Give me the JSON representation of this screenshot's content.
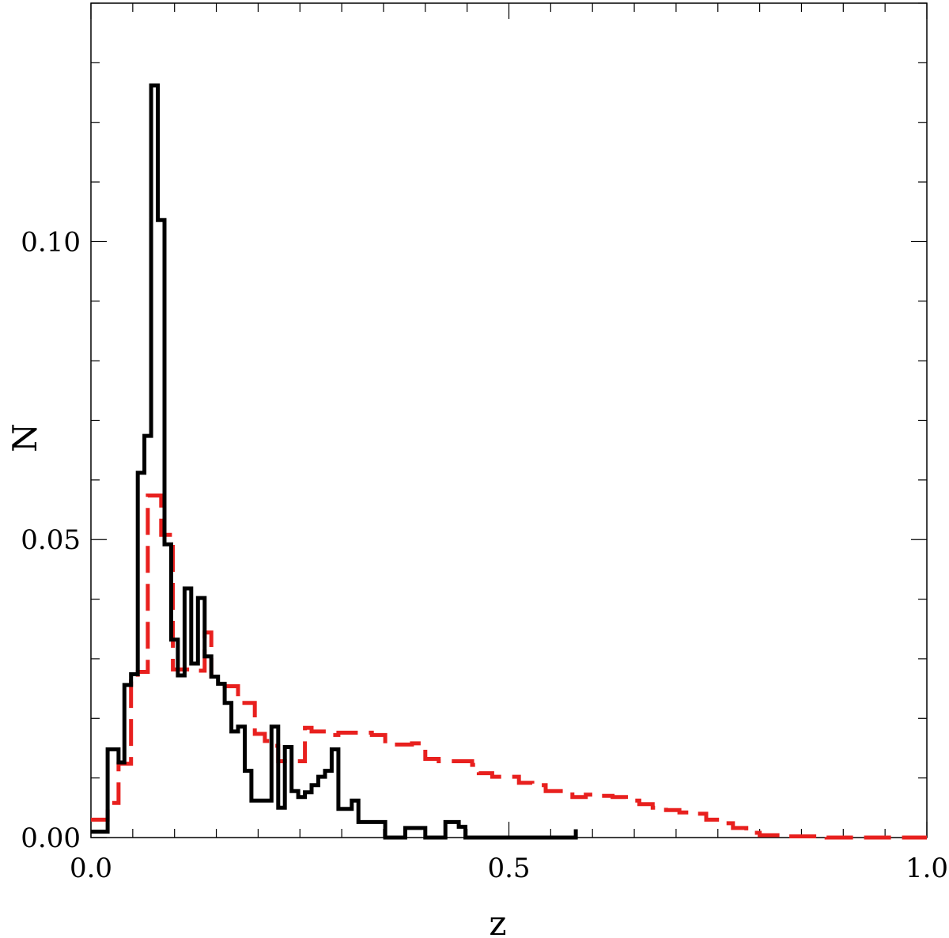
{
  "chart_data": {
    "type": "line",
    "title": "",
    "xlabel": "z",
    "ylabel": "N",
    "xlim": [
      0.0,
      1.0
    ],
    "ylim": [
      0.0,
      0.14
    ],
    "x_ticks": [
      0.0,
      0.5,
      1.0
    ],
    "x_tick_labels": [
      "0.0",
      "0.5",
      "1.0"
    ],
    "y_ticks": [
      0.0,
      0.05,
      0.1
    ],
    "y_tick_labels": [
      "0.00",
      "0.05",
      "0.10"
    ],
    "grid": false,
    "series": [
      {
        "style": "solid-step",
        "color": "#000000",
        "edges": [
          0.0,
          0.02,
          0.033,
          0.04,
          0.048,
          0.056,
          0.064,
          0.072,
          0.08,
          0.088,
          0.096,
          0.104,
          0.112,
          0.12,
          0.128,
          0.136,
          0.144,
          0.152,
          0.16,
          0.168,
          0.176,
          0.184,
          0.192,
          0.2,
          0.208,
          0.216,
          0.224,
          0.232,
          0.24,
          0.248,
          0.256,
          0.264,
          0.272,
          0.28,
          0.288,
          0.296,
          0.304,
          0.312,
          0.32,
          0.328,
          0.336,
          0.344,
          0.352,
          0.36,
          0.368,
          0.376,
          0.384,
          0.392,
          0.4,
          0.424,
          0.44,
          0.448,
          0.48,
          0.488,
          0.496,
          0.504,
          0.58
        ],
        "values": [
          0.001,
          0.0148,
          0.0126,
          0.0256,
          0.0274,
          0.0612,
          0.0674,
          0.1262,
          0.1036,
          0.0492,
          0.0332,
          0.0272,
          0.0418,
          0.0292,
          0.0402,
          0.0304,
          0.027,
          0.0258,
          0.0226,
          0.0178,
          0.0186,
          0.0112,
          0.0062,
          0.0062,
          0.0062,
          0.0186,
          0.005,
          0.0152,
          0.0078,
          0.0068,
          0.0076,
          0.0088,
          0.0102,
          0.0112,
          0.0148,
          0.0048,
          0.0048,
          0.0062,
          0.0026,
          0.0026,
          0.0026,
          0.0026,
          0.0,
          0.0,
          0.0,
          0.0016,
          0.0016,
          0.0016,
          0.0,
          0.0026,
          0.0018,
          0.0,
          0.0,
          0.0,
          0.0,
          0.0,
          0.0014
        ]
      },
      {
        "style": "dashed-step",
        "color": "#e8201e",
        "edges": [
          0.0,
          0.02,
          0.033,
          0.048,
          0.056,
          0.068,
          0.084,
          0.098,
          0.118,
          0.136,
          0.144,
          0.16,
          0.176,
          0.196,
          0.208,
          0.216,
          0.224,
          0.24,
          0.256,
          0.264,
          0.28,
          0.288,
          0.296,
          0.312,
          0.336,
          0.352,
          0.368,
          0.384,
          0.4,
          0.416,
          0.432,
          0.456,
          0.464,
          0.48,
          0.496,
          0.512,
          0.528,
          0.544,
          0.56,
          0.576,
          0.592,
          0.608,
          0.624,
          0.64,
          0.656,
          0.672,
          0.688,
          0.704,
          0.72,
          0.736,
          0.752,
          0.768,
          0.784,
          0.8,
          0.816,
          0.832,
          0.848,
          0.864,
          0.88,
          0.896,
          0.912,
          0.928,
          0.944,
          0.96,
          0.976,
          1.0
        ],
        "values": [
          0.003,
          0.0058,
          0.0124,
          0.0262,
          0.0278,
          0.0574,
          0.0508,
          0.0282,
          0.028,
          0.0344,
          0.027,
          0.0254,
          0.0226,
          0.0174,
          0.0162,
          0.0154,
          0.0128,
          0.0128,
          0.0184,
          0.0178,
          0.0178,
          0.0172,
          0.0176,
          0.0176,
          0.0172,
          0.0156,
          0.0156,
          0.0158,
          0.0132,
          0.0128,
          0.0128,
          0.0122,
          0.0108,
          0.0102,
          0.0102,
          0.0092,
          0.0088,
          0.0078,
          0.0078,
          0.0068,
          0.0072,
          0.007,
          0.0068,
          0.0062,
          0.0056,
          0.005,
          0.0046,
          0.0042,
          0.004,
          0.003,
          0.0024,
          0.0016,
          0.0008,
          0.0004,
          0.0004,
          0.0002,
          0.0002,
          0.0002,
          0.0,
          0.0,
          0.0,
          0.0,
          0.0,
          0.0,
          0.0
        ]
      }
    ]
  }
}
